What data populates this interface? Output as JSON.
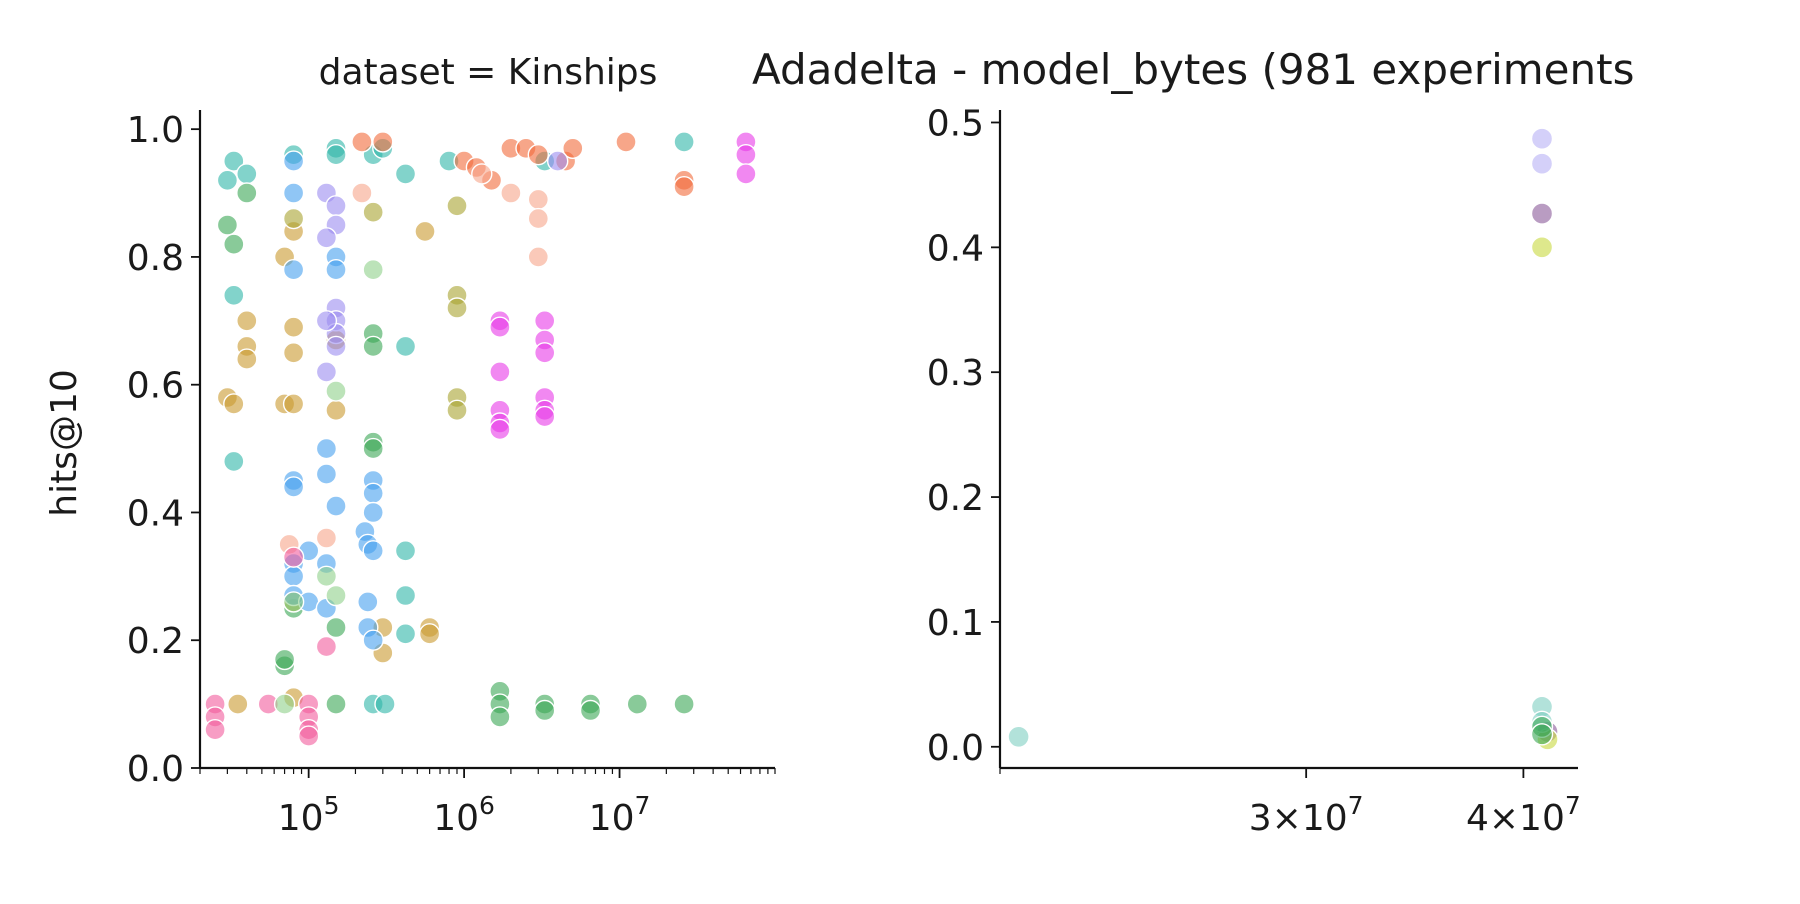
{
  "chart_data": [
    {
      "type": "scatter",
      "panel_title": "dataset = Kinships",
      "ylabel": "hits@10",
      "xlabel": "",
      "x_scale": "log",
      "xlim": [
        20000,
        100000000
      ],
      "ylim": [
        0,
        1.03
      ],
      "x_ticks": [
        {
          "value": 100000,
          "base": "10",
          "exp": "5"
        },
        {
          "value": 1000000,
          "base": "10",
          "exp": "6"
        },
        {
          "value": 10000000,
          "base": "10",
          "exp": "7"
        }
      ],
      "y_ticks": [
        {
          "value": 0,
          "label": "0.0"
        },
        {
          "value": 0.2,
          "label": "0.2"
        },
        {
          "value": 0.4,
          "label": "0.4"
        },
        {
          "value": 0.6,
          "label": "0.6"
        },
        {
          "value": 0.8,
          "label": "0.8"
        },
        {
          "value": 1.0,
          "label": "1.0"
        }
      ],
      "grid": false,
      "series": [
        {
          "color": "#2fb5a9",
          "points": [
            [
              30000,
              0.92
            ],
            [
              33000,
              0.95
            ],
            [
              40000,
              0.93
            ],
            [
              80000,
              0.96
            ],
            [
              150000,
              0.97
            ],
            [
              260000,
              0.96
            ],
            [
              300000,
              0.97
            ],
            [
              420000,
              0.93
            ],
            [
              800000,
              0.95
            ],
            [
              3300000,
              0.95
            ],
            [
              26000000,
              0.98
            ],
            [
              33000,
              0.74
            ],
            [
              33000,
              0.48
            ],
            [
              420000,
              0.66
            ],
            [
              420000,
              0.34
            ],
            [
              420000,
              0.27
            ],
            [
              420000,
              0.21
            ],
            [
              260000,
              0.1
            ],
            [
              310000,
              0.1
            ],
            [
              150000,
              0.96
            ]
          ]
        },
        {
          "color": "#3aa655",
          "points": [
            [
              30000,
              0.85
            ],
            [
              33000,
              0.82
            ],
            [
              40000,
              0.9
            ],
            [
              70000,
              0.16
            ],
            [
              70000,
              0.17
            ],
            [
              80000,
              0.25
            ],
            [
              150000,
              0.22
            ],
            [
              260000,
              0.68
            ],
            [
              260000,
              0.66
            ],
            [
              260000,
              0.51
            ],
            [
              260000,
              0.5
            ],
            [
              1700000,
              0.12
            ],
            [
              1700000,
              0.1
            ],
            [
              1700000,
              0.08
            ],
            [
              3300000,
              0.1
            ],
            [
              3300000,
              0.09
            ],
            [
              6500000,
              0.1
            ],
            [
              6500000,
              0.09
            ],
            [
              13000000,
              0.1
            ],
            [
              26000000,
              0.1
            ],
            [
              150000,
              0.1
            ]
          ]
        },
        {
          "color": "#c99a2e",
          "points": [
            [
              30000,
              0.58
            ],
            [
              33000,
              0.57
            ],
            [
              40000,
              0.7
            ],
            [
              40000,
              0.66
            ],
            [
              40000,
              0.64
            ],
            [
              70000,
              0.57
            ],
            [
              80000,
              0.57
            ],
            [
              80000,
              0.69
            ],
            [
              80000,
              0.65
            ],
            [
              150000,
              0.56
            ],
            [
              150000,
              0.67
            ],
            [
              70000,
              0.8
            ],
            [
              80000,
              0.84
            ],
            [
              300000,
              0.22
            ],
            [
              300000,
              0.18
            ],
            [
              560000,
              0.84
            ],
            [
              600000,
              0.22
            ],
            [
              600000,
              0.21
            ],
            [
              35000,
              0.1
            ],
            [
              80000,
              0.11
            ]
          ]
        },
        {
          "color": "#a8a330",
          "points": [
            [
              900000,
              0.74
            ],
            [
              900000,
              0.72
            ],
            [
              900000,
              0.58
            ],
            [
              900000,
              0.56
            ],
            [
              900000,
              0.88
            ],
            [
              80000,
              0.86
            ],
            [
              260000,
              0.87
            ],
            [
              80000,
              0.26
            ]
          ]
        },
        {
          "color": "#f26b3a",
          "points": [
            [
              1000000,
              0.95
            ],
            [
              1200000,
              0.94
            ],
            [
              1500000,
              0.92
            ],
            [
              2000000,
              0.97
            ],
            [
              2500000,
              0.97
            ],
            [
              3000000,
              0.96
            ],
            [
              4500000,
              0.95
            ],
            [
              5000000,
              0.97
            ],
            [
              11000000,
              0.98
            ],
            [
              26000000,
              0.92
            ],
            [
              26000000,
              0.91
            ],
            [
              300000,
              0.98
            ],
            [
              220000,
              0.98
            ]
          ]
        },
        {
          "color": "#f7a58a",
          "points": [
            [
              2000000,
              0.9
            ],
            [
              3000000,
              0.89
            ],
            [
              3000000,
              0.86
            ],
            [
              3000000,
              0.8
            ],
            [
              1300000,
              0.93
            ],
            [
              75000,
              0.35
            ],
            [
              130000,
              0.36
            ],
            [
              220000,
              0.9
            ]
          ]
        },
        {
          "color": "#e838e8",
          "points": [
            [
              1700000,
              0.7
            ],
            [
              1700000,
              0.69
            ],
            [
              1700000,
              0.62
            ],
            [
              1700000,
              0.56
            ],
            [
              1700000,
              0.54
            ],
            [
              1700000,
              0.53
            ],
            [
              3300000,
              0.7
            ],
            [
              3300000,
              0.67
            ],
            [
              3300000,
              0.65
            ],
            [
              3300000,
              0.58
            ],
            [
              3300000,
              0.56
            ],
            [
              3300000,
              0.55
            ],
            [
              65000000,
              0.98
            ],
            [
              65000000,
              0.96
            ],
            [
              65000000,
              0.93
            ]
          ]
        },
        {
          "color": "#9b8cf0",
          "points": [
            [
              130000,
              0.9
            ],
            [
              150000,
              0.88
            ],
            [
              150000,
              0.85
            ],
            [
              130000,
              0.62
            ],
            [
              150000,
              0.72
            ],
            [
              150000,
              0.7
            ],
            [
              150000,
              0.68
            ],
            [
              150000,
              0.66
            ],
            [
              130000,
              0.7
            ],
            [
              4000000,
              0.95
            ],
            [
              130000,
              0.83
            ]
          ]
        },
        {
          "color": "#46a0ee",
          "points": [
            [
              80000,
              0.45
            ],
            [
              80000,
              0.44
            ],
            [
              80000,
              0.32
            ],
            [
              80000,
              0.3
            ],
            [
              80000,
              0.27
            ],
            [
              100000,
              0.34
            ],
            [
              100000,
              0.26
            ],
            [
              130000,
              0.5
            ],
            [
              130000,
              0.46
            ],
            [
              130000,
              0.32
            ],
            [
              130000,
              0.25
            ],
            [
              150000,
              0.41
            ],
            [
              230000,
              0.37
            ],
            [
              240000,
              0.35
            ],
            [
              260000,
              0.45
            ],
            [
              260000,
              0.43
            ],
            [
              260000,
              0.4
            ],
            [
              260000,
              0.34
            ],
            [
              240000,
              0.26
            ],
            [
              240000,
              0.22
            ],
            [
              260000,
              0.2
            ],
            [
              80000,
              0.95
            ],
            [
              80000,
              0.9
            ],
            [
              80000,
              0.78
            ],
            [
              150000,
              0.8
            ],
            [
              150000,
              0.78
            ]
          ]
        },
        {
          "color": "#f25b9c",
          "points": [
            [
              25000,
              0.1
            ],
            [
              25000,
              0.08
            ],
            [
              25000,
              0.06
            ],
            [
              55000,
              0.1
            ],
            [
              100000,
              0.1
            ],
            [
              100000,
              0.08
            ],
            [
              100000,
              0.06
            ],
            [
              100000,
              0.05
            ],
            [
              130000,
              0.19
            ],
            [
              80000,
              0.33
            ]
          ]
        },
        {
          "color": "#8fd18a",
          "points": [
            [
              80000,
              0.26
            ],
            [
              130000,
              0.3
            ],
            [
              150000,
              0.27
            ],
            [
              150000,
              0.59
            ],
            [
              260000,
              0.78
            ],
            [
              70000,
              0.1
            ]
          ]
        }
      ]
    },
    {
      "type": "scatter",
      "panel_title": "Adadelta - model_bytes (981 experiments",
      "ylabel": "",
      "xlabel": "",
      "x_scale": "log",
      "xlim": [
        20000000,
        43000000
      ],
      "ylim": [
        -0.017,
        0.51
      ],
      "x_ticks": [
        {
          "value": 30000000,
          "label": "3×10",
          "exp": "7"
        },
        {
          "value": 40000000,
          "label": "4×10",
          "exp": "7"
        }
      ],
      "y_ticks": [
        {
          "value": 0,
          "label": "0.0"
        },
        {
          "value": 0.1,
          "label": "0.1"
        },
        {
          "value": 0.2,
          "label": "0.2"
        },
        {
          "value": 0.3,
          "label": "0.3"
        },
        {
          "value": 0.4,
          "label": "0.4"
        },
        {
          "value": 0.5,
          "label": "0.5"
        }
      ],
      "grid": false,
      "series": [
        {
          "color": "#b7b0f5",
          "points": [
            [
              41000000,
              0.487
            ],
            [
              41000000,
              0.467
            ]
          ]
        },
        {
          "color": "#8a5a9a",
          "points": [
            [
              41000000,
              0.427
            ],
            [
              41300000,
              0.012
            ]
          ]
        },
        {
          "color": "#c8d840",
          "points": [
            [
              41000000,
              0.4
            ],
            [
              41300000,
              0.006
            ]
          ]
        },
        {
          "color": "#7fcfc2",
          "points": [
            [
              20500000,
              0.008
            ],
            [
              41000000,
              0.032
            ],
            [
              41000000,
              0.02
            ]
          ]
        },
        {
          "color": "#3aa655",
          "points": [
            [
              41000000,
              0.016
            ],
            [
              41000000,
              0.01
            ]
          ]
        }
      ]
    }
  ]
}
